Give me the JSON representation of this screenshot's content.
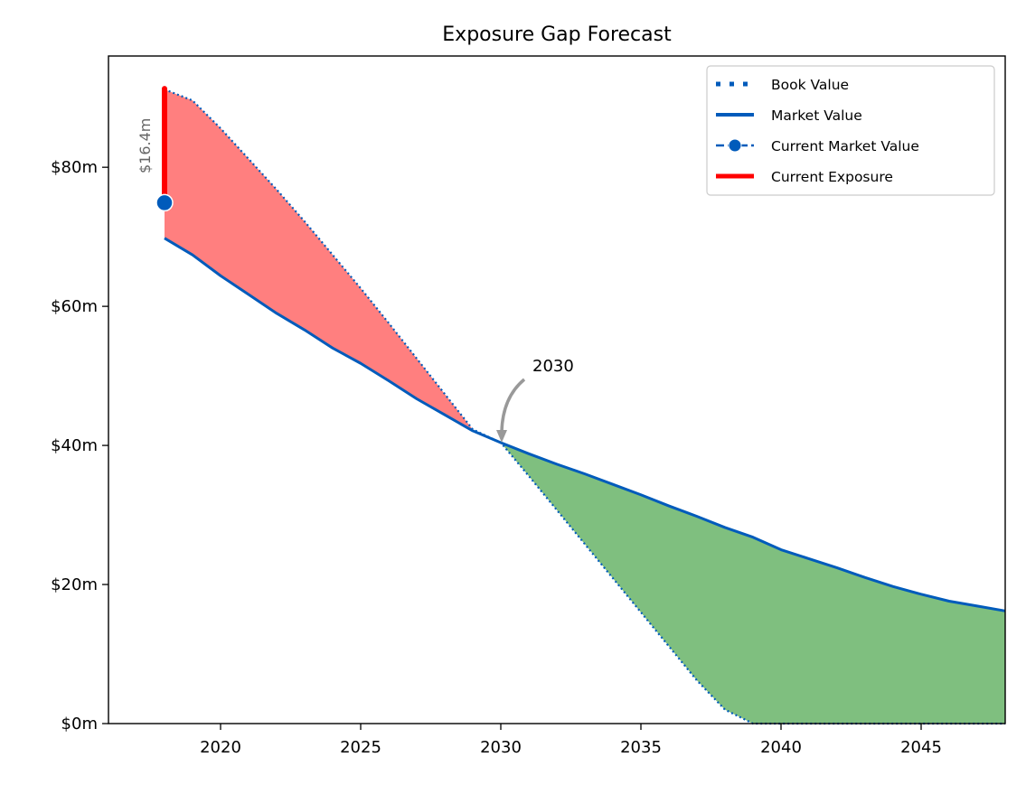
{
  "chart_data": {
    "type": "line",
    "title": "Exposure Gap Forecast",
    "xlabel": "",
    "ylabel": "",
    "xlim": [
      2016,
      2048
    ],
    "ylim": [
      0,
      96
    ],
    "x_ticks": [
      2020,
      2025,
      2030,
      2035,
      2040,
      2045
    ],
    "y_ticks": [
      0,
      20,
      40,
      60,
      80
    ],
    "y_tick_labels": [
      "$0m",
      "$20m",
      "$40m",
      "$60m",
      "$80m"
    ],
    "grid": false,
    "legend_position": "top-right",
    "series": [
      {
        "name": "Book Value",
        "style": "dotted",
        "color": "#005bbb",
        "x": [
          2018,
          2019,
          2020,
          2021,
          2022,
          2023,
          2024,
          2025,
          2026,
          2027,
          2028,
          2029,
          2030,
          2031,
          2032,
          2033,
          2034,
          2035,
          2036,
          2037,
          2038,
          2039,
          2040,
          2041,
          2042,
          2043,
          2044,
          2045,
          2046,
          2047,
          2048
        ],
        "y": [
          91.2,
          89.6,
          85.6,
          81.2,
          76.8,
          72.2,
          67.4,
          62.6,
          57.6,
          52.5,
          47.4,
          42.3,
          40.4,
          35.6,
          30.7,
          25.8,
          20.9,
          16.0,
          11.1,
          6.2,
          2.0,
          0,
          0,
          0,
          0,
          0,
          0,
          0,
          0,
          0,
          0
        ]
      },
      {
        "name": "Market Value",
        "style": "solid",
        "color": "#005bbb",
        "x": [
          2018,
          2019,
          2020,
          2021,
          2022,
          2023,
          2024,
          2025,
          2026,
          2027,
          2028,
          2029,
          2030,
          2031,
          2032,
          2033,
          2034,
          2035,
          2036,
          2037,
          2038,
          2039,
          2040,
          2041,
          2042,
          2043,
          2044,
          2045,
          2046,
          2047,
          2048
        ],
        "y": [
          69.8,
          67.4,
          64.4,
          61.7,
          59.0,
          56.6,
          54.0,
          51.8,
          49.3,
          46.7,
          44.4,
          42.1,
          40.4,
          38.8,
          37.3,
          35.9,
          34.4,
          32.9,
          31.3,
          29.8,
          28.2,
          26.8,
          25.0,
          23.7,
          22.4,
          21.0,
          19.7,
          18.6,
          17.6,
          16.9,
          16.2
        ]
      },
      {
        "name": "Current Market Value",
        "style": "marker",
        "color": "#005bbb",
        "x": [
          2018
        ],
        "y": [
          74.9
        ]
      },
      {
        "name": "Current Exposure",
        "style": "solid-thick",
        "color": "#ff0000",
        "x": [
          2018,
          2018
        ],
        "y": [
          74.9,
          91.3
        ]
      }
    ],
    "fills": {
      "exposure_color": "#ff7f7f",
      "surplus_color": "#7fbf7f"
    },
    "annotations": [
      {
        "text": "2030",
        "x": 2030,
        "y": 40.4
      },
      {
        "text": "$16.4m",
        "x": 2018,
        "y": 83.1
      }
    ]
  }
}
